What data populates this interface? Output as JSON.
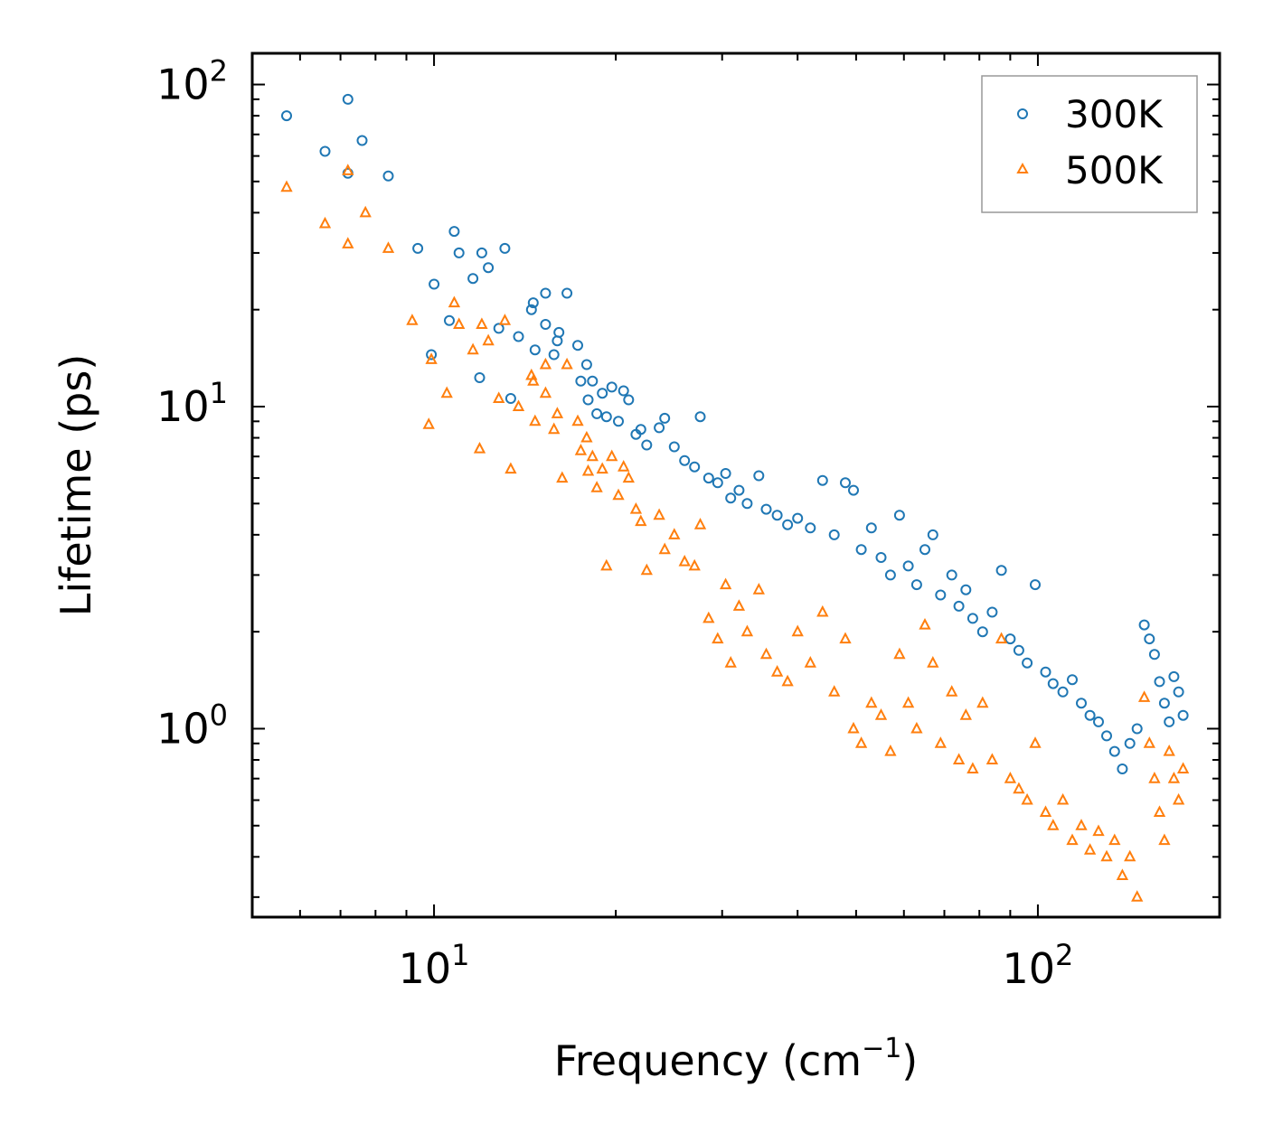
{
  "chart_data": {
    "type": "scatter",
    "xscale": "log",
    "yscale": "log",
    "xlabel": "Frequency (cm",
    "xlabel_sup": "−1",
    "xlabel_close": ")",
    "ylabel": "Lifetime (ps)",
    "xlim": [
      5.0,
      200
    ],
    "ylim": [
      0.26,
      125
    ],
    "x_ticks": [
      {
        "value": 10,
        "base": "10",
        "exp": "1"
      },
      {
        "value": 100,
        "base": "10",
        "exp": "2"
      }
    ],
    "y_ticks": [
      {
        "value": 1,
        "base": "10",
        "exp": "0"
      },
      {
        "value": 10,
        "base": "10",
        "exp": "1"
      },
      {
        "value": 100,
        "base": "10",
        "exp": "2"
      }
    ],
    "legend_position": "top-right",
    "series": [
      {
        "name": "300K",
        "marker": "circle",
        "color": "#1f77b4",
        "points": [
          [
            5.7,
            80
          ],
          [
            6.6,
            62
          ],
          [
            7.2,
            90
          ],
          [
            7.2,
            53
          ],
          [
            7.6,
            67
          ],
          [
            8.4,
            52
          ],
          [
            9.4,
            31
          ],
          [
            9.9,
            14.5
          ],
          [
            10.0,
            24
          ],
          [
            10.6,
            18.5
          ],
          [
            10.8,
            35
          ],
          [
            11.0,
            30
          ],
          [
            11.6,
            25
          ],
          [
            11.9,
            12.3
          ],
          [
            12.0,
            30
          ],
          [
            12.3,
            27
          ],
          [
            12.8,
            17.5
          ],
          [
            13.1,
            31
          ],
          [
            13.4,
            10.6
          ],
          [
            13.8,
            16.5
          ],
          [
            14.5,
            20
          ],
          [
            14.6,
            21
          ],
          [
            14.7,
            15
          ],
          [
            15.3,
            22.5
          ],
          [
            15.3,
            18
          ],
          [
            15.8,
            14.5
          ],
          [
            16.0,
            16
          ],
          [
            16.1,
            17
          ],
          [
            16.6,
            22.5
          ],
          [
            17.3,
            15.5
          ],
          [
            17.5,
            12
          ],
          [
            17.9,
            13.5
          ],
          [
            18.0,
            10.5
          ],
          [
            18.3,
            12
          ],
          [
            18.6,
            9.5
          ],
          [
            19.0,
            11
          ],
          [
            19.3,
            9.3
          ],
          [
            19.7,
            11.5
          ],
          [
            20.2,
            9.0
          ],
          [
            20.6,
            11.2
          ],
          [
            21.0,
            10.5
          ],
          [
            21.6,
            8.2
          ],
          [
            22.0,
            8.5
          ],
          [
            22.5,
            7.6
          ],
          [
            23.6,
            8.6
          ],
          [
            24.1,
            9.2
          ],
          [
            25.0,
            7.5
          ],
          [
            26.0,
            6.8
          ],
          [
            27.0,
            6.5
          ],
          [
            27.6,
            9.3
          ],
          [
            28.5,
            6.0
          ],
          [
            29.5,
            5.8
          ],
          [
            30.4,
            6.2
          ],
          [
            31.0,
            5.2
          ],
          [
            32.0,
            5.5
          ],
          [
            33.0,
            5.0
          ],
          [
            34.5,
            6.1
          ],
          [
            35.5,
            4.8
          ],
          [
            37.0,
            4.6
          ],
          [
            38.5,
            4.3
          ],
          [
            40.0,
            4.5
          ],
          [
            42.0,
            4.2
          ],
          [
            44.0,
            5.9
          ],
          [
            46.0,
            4.0
          ],
          [
            48.0,
            5.8
          ],
          [
            49.5,
            5.5
          ],
          [
            51.0,
            3.6
          ],
          [
            53.0,
            4.2
          ],
          [
            55.0,
            3.4
          ],
          [
            57.0,
            3.0
          ],
          [
            59.0,
            4.6
          ],
          [
            61.0,
            3.2
          ],
          [
            63.0,
            2.8
          ],
          [
            65.0,
            3.6
          ],
          [
            67.0,
            4.0
          ],
          [
            69.0,
            2.6
          ],
          [
            72.0,
            3.0
          ],
          [
            74.0,
            2.4
          ],
          [
            76.0,
            2.7
          ],
          [
            78.0,
            2.2
          ],
          [
            81.0,
            2.0
          ],
          [
            84.0,
            2.3
          ],
          [
            87.0,
            3.1
          ],
          [
            90.0,
            1.9
          ],
          [
            93.0,
            1.75
          ],
          [
            96.0,
            1.6
          ],
          [
            99.0,
            2.8
          ],
          [
            103.0,
            1.5
          ],
          [
            106.0,
            1.38
          ],
          [
            110.0,
            1.3
          ],
          [
            114.0,
            1.42
          ],
          [
            118.0,
            1.2
          ],
          [
            122.0,
            1.1
          ],
          [
            126.0,
            1.05
          ],
          [
            130.0,
            0.95
          ],
          [
            134.0,
            0.85
          ],
          [
            138.0,
            0.75
          ],
          [
            142.0,
            0.9
          ],
          [
            146.0,
            1.0
          ],
          [
            150.0,
            2.1
          ],
          [
            153.0,
            1.9
          ],
          [
            156.0,
            1.7
          ],
          [
            159.0,
            1.4
          ],
          [
            162.0,
            1.2
          ],
          [
            165.0,
            1.05
          ],
          [
            168.0,
            1.45
          ],
          [
            171.0,
            1.3
          ],
          [
            174.0,
            1.1
          ]
        ]
      },
      {
        "name": "500K",
        "marker": "triangle",
        "color": "#ff7f0e",
        "points": [
          [
            5.7,
            48
          ],
          [
            6.6,
            37
          ],
          [
            7.2,
            54
          ],
          [
            7.2,
            32
          ],
          [
            7.7,
            40
          ],
          [
            8.4,
            31
          ],
          [
            9.2,
            18.5
          ],
          [
            9.8,
            8.8
          ],
          [
            9.9,
            14
          ],
          [
            10.5,
            11
          ],
          [
            10.8,
            21
          ],
          [
            11.0,
            18
          ],
          [
            11.6,
            15
          ],
          [
            11.9,
            7.4
          ],
          [
            12.0,
            18
          ],
          [
            12.3,
            16
          ],
          [
            12.8,
            10.6
          ],
          [
            13.1,
            18.5
          ],
          [
            13.4,
            6.4
          ],
          [
            13.8,
            10
          ],
          [
            14.5,
            12.5
          ],
          [
            14.6,
            12
          ],
          [
            14.7,
            9
          ],
          [
            15.3,
            13.5
          ],
          [
            15.3,
            11
          ],
          [
            15.8,
            8.5
          ],
          [
            16.0,
            9.5
          ],
          [
            16.3,
            6.0
          ],
          [
            16.6,
            13.5
          ],
          [
            17.3,
            9
          ],
          [
            17.5,
            7.3
          ],
          [
            17.9,
            8.0
          ],
          [
            18.0,
            6.3
          ],
          [
            18.3,
            7.0
          ],
          [
            18.6,
            5.6
          ],
          [
            19.0,
            6.4
          ],
          [
            19.3,
            3.2
          ],
          [
            19.7,
            7.0
          ],
          [
            20.2,
            5.3
          ],
          [
            20.6,
            6.5
          ],
          [
            21.0,
            6.0
          ],
          [
            21.6,
            4.8
          ],
          [
            22.0,
            4.4
          ],
          [
            22.5,
            3.1
          ],
          [
            23.6,
            4.6
          ],
          [
            24.1,
            3.6
          ],
          [
            25.0,
            4.0
          ],
          [
            26.0,
            3.3
          ],
          [
            27.0,
            3.2
          ],
          [
            27.6,
            4.3
          ],
          [
            28.5,
            2.2
          ],
          [
            29.5,
            1.9
          ],
          [
            30.4,
            2.8
          ],
          [
            31.0,
            1.6
          ],
          [
            32.0,
            2.4
          ],
          [
            33.0,
            2.0
          ],
          [
            34.5,
            2.7
          ],
          [
            35.5,
            1.7
          ],
          [
            37.0,
            1.5
          ],
          [
            38.5,
            1.4
          ],
          [
            40.0,
            2.0
          ],
          [
            42.0,
            1.6
          ],
          [
            44.0,
            2.3
          ],
          [
            46.0,
            1.3
          ],
          [
            48.0,
            1.9
          ],
          [
            49.5,
            1.0
          ],
          [
            51.0,
            0.9
          ],
          [
            53.0,
            1.2
          ],
          [
            55.0,
            1.1
          ],
          [
            57.0,
            0.85
          ],
          [
            59.0,
            1.7
          ],
          [
            61.0,
            1.2
          ],
          [
            63.0,
            1.0
          ],
          [
            65.0,
            2.1
          ],
          [
            67.0,
            1.6
          ],
          [
            69.0,
            0.9
          ],
          [
            72.0,
            1.3
          ],
          [
            74.0,
            0.8
          ],
          [
            76.0,
            1.1
          ],
          [
            78.0,
            0.75
          ],
          [
            81.0,
            1.2
          ],
          [
            84.0,
            0.8
          ],
          [
            87.0,
            1.9
          ],
          [
            90.0,
            0.7
          ],
          [
            93.0,
            0.65
          ],
          [
            96.0,
            0.6
          ],
          [
            99.0,
            0.9
          ],
          [
            103.0,
            0.55
          ],
          [
            106.0,
            0.5
          ],
          [
            110.0,
            0.6
          ],
          [
            114.0,
            0.45
          ],
          [
            118.0,
            0.5
          ],
          [
            122.0,
            0.42
          ],
          [
            126.0,
            0.48
          ],
          [
            130.0,
            0.4
          ],
          [
            134.0,
            0.45
          ],
          [
            138.0,
            0.35
          ],
          [
            142.0,
            0.4
          ],
          [
            146.0,
            0.3
          ],
          [
            150.0,
            1.25
          ],
          [
            153.0,
            0.9
          ],
          [
            156.0,
            0.7
          ],
          [
            159.0,
            0.55
          ],
          [
            162.0,
            0.45
          ],
          [
            165.0,
            0.85
          ],
          [
            168.0,
            0.7
          ],
          [
            171.0,
            0.6
          ],
          [
            174.0,
            0.75
          ]
        ]
      }
    ]
  }
}
